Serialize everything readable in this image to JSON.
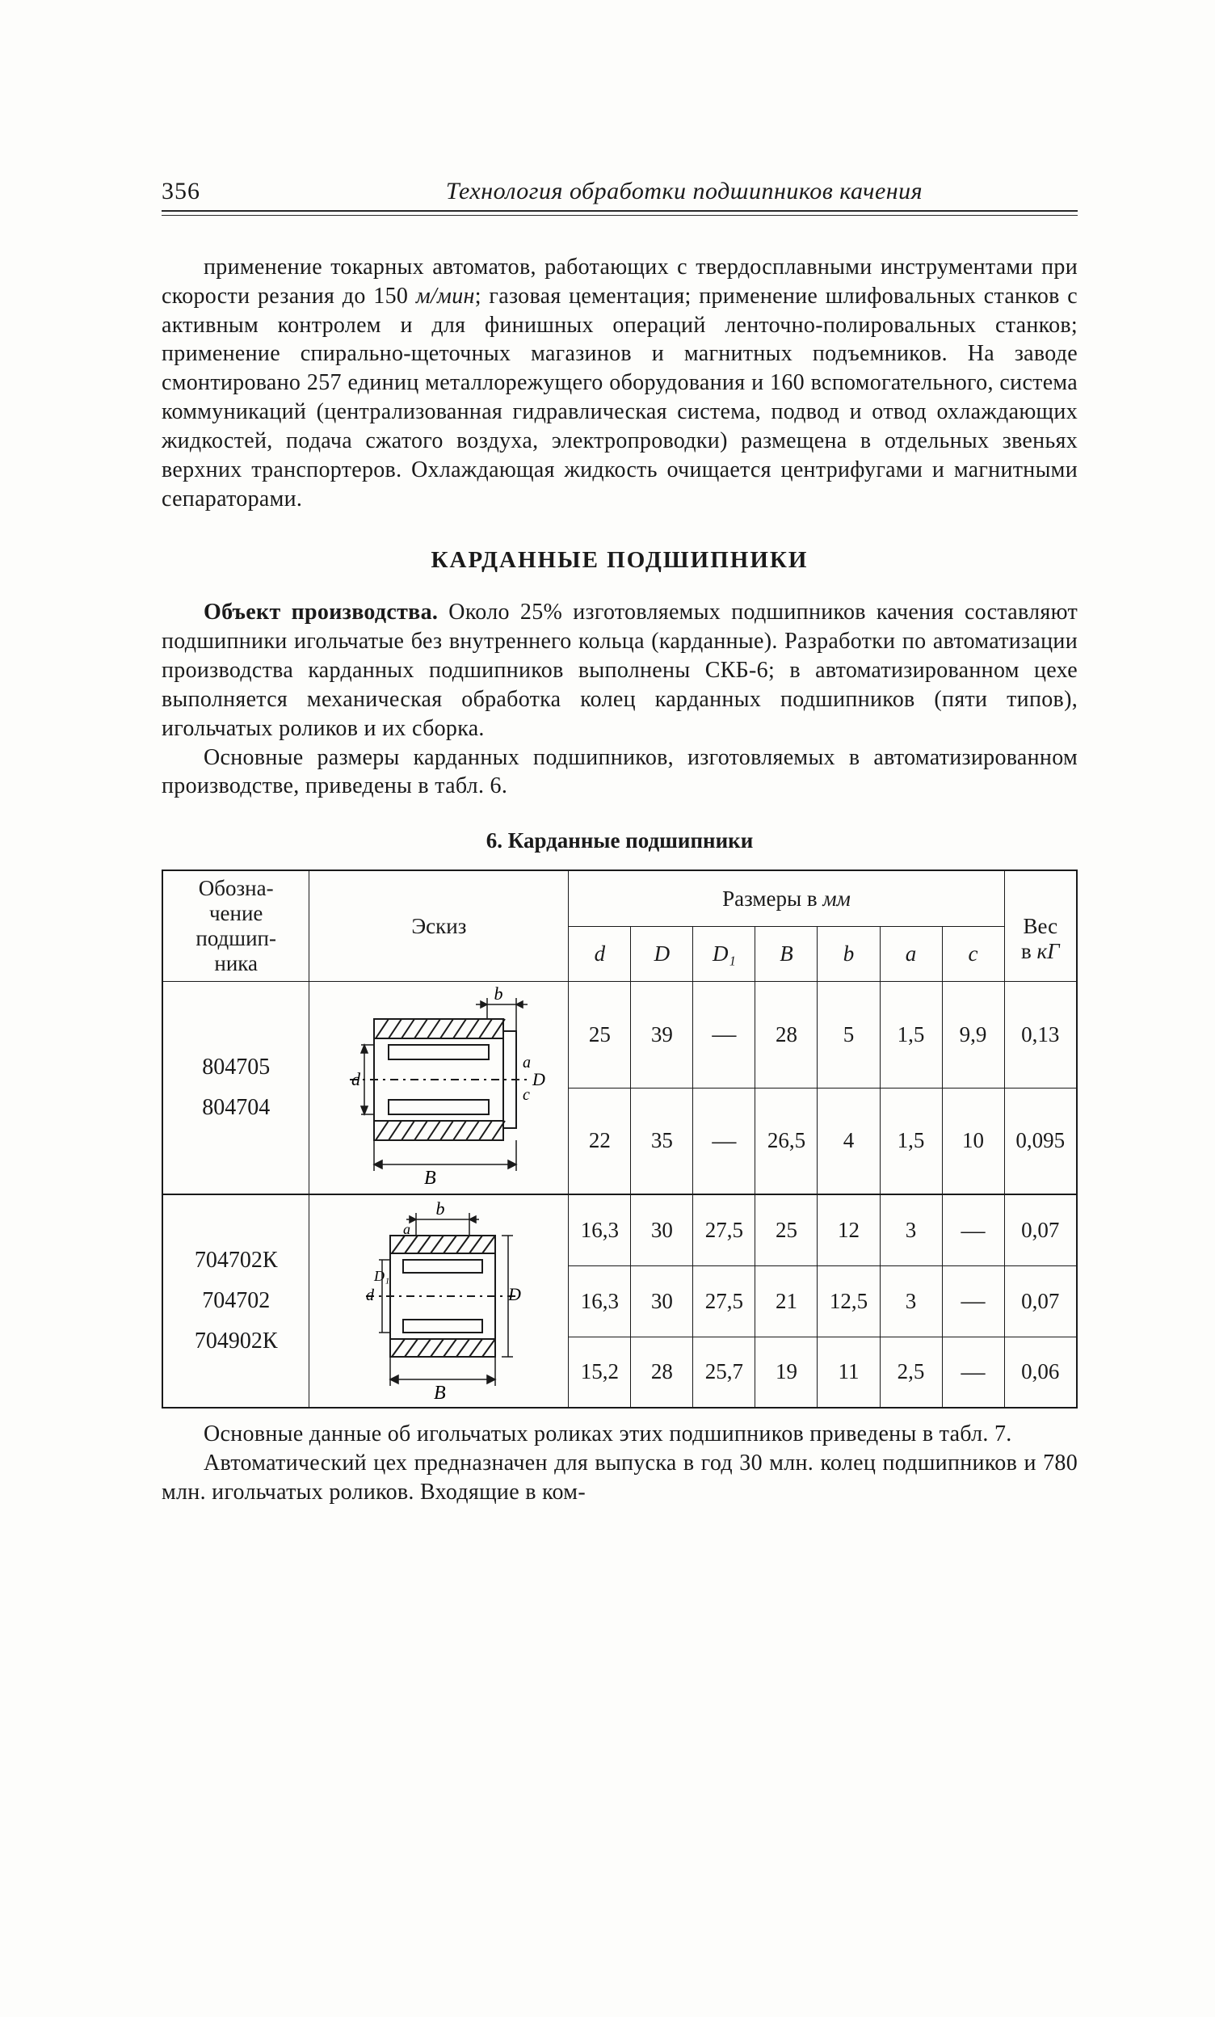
{
  "page_number": "356",
  "running_title": "Технология обработки подшипников качения",
  "para1_html": "применение токарных автоматов, работающих с твердосплавными инструментами при скорости резания до 150 <span class=\"italic\">м/мин</span>; газовая цементация; применение шлифовальных станков с активным контролем и для финишных операций ленточно-полировальных станков; применение спирально-щеточных магазинов и магнитных подъемников. На заводе смонтировано 257 единиц металлорежущего оборудования и 160 вспомогательного, система коммуникаций (централизованная гидравлическая система, подвод и отвод охлаждающих жидкостей, подача сжатого воздуха, электропроводки) размещена в отдельных звеньях верхних транспортеров. Охлаждающая жидкость очищается центрифугами и магнитными сепараторами.",
  "section_title": "КАРДАННЫЕ ПОДШИПНИКИ",
  "para2_html": "<span class=\"bold\">Объект производства.</span> Около 25% изготовляемых подшипников качения составляют подшипники игольчатые без внутреннего кольца (карданные). Разработки по автоматизации производства карданных подшипников выполнены СКБ-6; в автоматизированном цехе выполняется механическая обработка колец карданных подшипников (пяти типов), игольчатых роликов и их сборка.",
  "para3": "Основные размеры карданных подшипников, изготовляемых в автоматизированном производстве, приведены в табл. 6.",
  "table_caption": "6. Карданные подшипники",
  "table": {
    "head": {
      "obozn": "Обозна-\nчение\nподшип-\nника",
      "eskiz": "Эскиз",
      "dims_title": "Размеры в",
      "dims_unit": "мм",
      "ves": "Вес\nв",
      "ves_unit": "кГ",
      "cols": [
        "d",
        "D",
        "D₁",
        "B",
        "b",
        "a",
        "c"
      ]
    },
    "groups": [
      {
        "designations": [
          "804705",
          "804704"
        ],
        "rows": [
          {
            "d": "25",
            "D": "39",
            "D1": "—",
            "B": "28",
            "b": "5",
            "a": "1,5",
            "c": "9,9",
            "w": "0,13"
          },
          {
            "d": "22",
            "D": "35",
            "D1": "—",
            "B": "26,5",
            "b": "4",
            "a": "1,5",
            "c": "10",
            "w": "0,095"
          }
        ],
        "sketch_labels": {
          "d": "d",
          "D": "D",
          "B": "B",
          "b": "b",
          "a": "a",
          "c": "c"
        }
      },
      {
        "designations": [
          "704702К",
          "704702",
          "704902К"
        ],
        "rows": [
          {
            "d": "16,3",
            "D": "30",
            "D1": "27,5",
            "B": "25",
            "b": "12",
            "a": "3",
            "c": "—",
            "w": "0,07"
          },
          {
            "d": "16,3",
            "D": "30",
            "D1": "27,5",
            "B": "21",
            "b": "12,5",
            "a": "3",
            "c": "—",
            "w": "0,07"
          },
          {
            "d": "15,2",
            "D": "28",
            "D1": "25,7",
            "B": "19",
            "b": "11",
            "a": "2,5",
            "c": "—",
            "w": "0,06"
          }
        ],
        "sketch_labels": {
          "d": "d",
          "D": "D",
          "D1": "D₁",
          "B": "B",
          "b": "b",
          "a": "a"
        }
      }
    ]
  },
  "para4": "Основные данные об игольчатых роликах этих подшипников приведены в табл. 7.",
  "para5": "Автоматический цех предназначен для выпуска в год 30 млн. колец подшипников и 780 млн. игольчатых роликов. Входящие в ком-"
}
